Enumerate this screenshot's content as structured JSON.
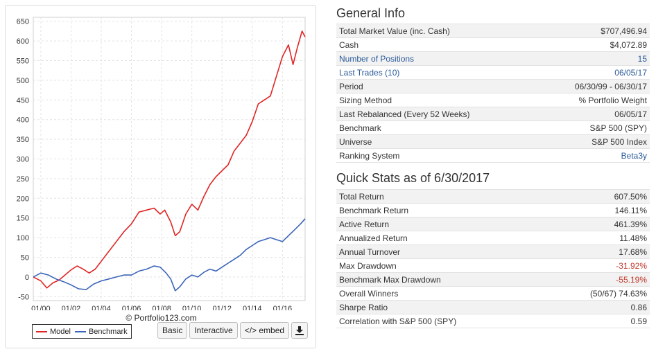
{
  "chart_data": {
    "type": "line",
    "ylim": [
      -60,
      660
    ],
    "yticks": [
      -50,
      0,
      50,
      100,
      150,
      200,
      250,
      300,
      350,
      400,
      450,
      500,
      550,
      600,
      650
    ],
    "xlim": [
      1999.5,
      2017.5
    ],
    "xticks": [
      {
        "label": "01/00",
        "x": 2000
      },
      {
        "label": "01/02",
        "x": 2002
      },
      {
        "label": "01/04",
        "x": 2004
      },
      {
        "label": "01/06",
        "x": 2006
      },
      {
        "label": "01/08",
        "x": 2008
      },
      {
        "label": "01/10",
        "x": 2010
      },
      {
        "label": "01/12",
        "x": 2012
      },
      {
        "label": "01/14",
        "x": 2014
      },
      {
        "label": "01/16",
        "x": 2016
      }
    ],
    "grid": true,
    "legend_position": "bottom-left",
    "series": [
      {
        "name": "Model",
        "color": "#e02424",
        "points": [
          [
            1999.5,
            0
          ],
          [
            2000.0,
            -10
          ],
          [
            2000.4,
            -28
          ],
          [
            2000.8,
            -15
          ],
          [
            2001.2,
            -8
          ],
          [
            2001.6,
            5
          ],
          [
            2002.0,
            18
          ],
          [
            2002.4,
            28
          ],
          [
            2002.8,
            20
          ],
          [
            2003.2,
            10
          ],
          [
            2003.6,
            20
          ],
          [
            2004.0,
            40
          ],
          [
            2004.5,
            65
          ],
          [
            2005.0,
            90
          ],
          [
            2005.5,
            115
          ],
          [
            2006.0,
            135
          ],
          [
            2006.5,
            165
          ],
          [
            2007.0,
            170
          ],
          [
            2007.5,
            175
          ],
          [
            2007.9,
            160
          ],
          [
            2008.2,
            170
          ],
          [
            2008.6,
            140
          ],
          [
            2008.9,
            105
          ],
          [
            2009.2,
            115
          ],
          [
            2009.6,
            160
          ],
          [
            2010.0,
            185
          ],
          [
            2010.4,
            170
          ],
          [
            2010.8,
            205
          ],
          [
            2011.2,
            235
          ],
          [
            2011.6,
            255
          ],
          [
            2012.0,
            270
          ],
          [
            2012.4,
            285
          ],
          [
            2012.8,
            320
          ],
          [
            2013.2,
            340
          ],
          [
            2013.6,
            360
          ],
          [
            2014.0,
            395
          ],
          [
            2014.4,
            440
          ],
          [
            2014.8,
            450
          ],
          [
            2015.2,
            460
          ],
          [
            2015.6,
            510
          ],
          [
            2016.0,
            560
          ],
          [
            2016.4,
            590
          ],
          [
            2016.7,
            540
          ],
          [
            2017.0,
            585
          ],
          [
            2017.3,
            625
          ],
          [
            2017.5,
            610
          ]
        ]
      },
      {
        "name": "Benchmark",
        "color": "#3a64b8",
        "points": [
          [
            1999.5,
            0
          ],
          [
            2000.0,
            10
          ],
          [
            2000.5,
            5
          ],
          [
            2001.0,
            -5
          ],
          [
            2001.5,
            -12
          ],
          [
            2002.0,
            -20
          ],
          [
            2002.5,
            -30
          ],
          [
            2003.0,
            -32
          ],
          [
            2003.5,
            -18
          ],
          [
            2004.0,
            -10
          ],
          [
            2004.5,
            -5
          ],
          [
            2005.0,
            0
          ],
          [
            2005.5,
            5
          ],
          [
            2006.0,
            5
          ],
          [
            2006.5,
            15
          ],
          [
            2007.0,
            20
          ],
          [
            2007.5,
            28
          ],
          [
            2007.9,
            25
          ],
          [
            2008.3,
            10
          ],
          [
            2008.6,
            -5
          ],
          [
            2008.9,
            -35
          ],
          [
            2009.2,
            -25
          ],
          [
            2009.6,
            -5
          ],
          [
            2010.0,
            5
          ],
          [
            2010.4,
            0
          ],
          [
            2010.8,
            12
          ],
          [
            2011.2,
            20
          ],
          [
            2011.6,
            15
          ],
          [
            2012.0,
            25
          ],
          [
            2012.4,
            35
          ],
          [
            2012.8,
            45
          ],
          [
            2013.2,
            55
          ],
          [
            2013.6,
            70
          ],
          [
            2014.0,
            80
          ],
          [
            2014.4,
            90
          ],
          [
            2014.8,
            95
          ],
          [
            2015.2,
            100
          ],
          [
            2015.6,
            95
          ],
          [
            2016.0,
            90
          ],
          [
            2016.4,
            105
          ],
          [
            2016.8,
            120
          ],
          [
            2017.2,
            135
          ],
          [
            2017.5,
            148
          ]
        ]
      }
    ]
  },
  "watermark": "© Portfolio123.com",
  "buttons": {
    "basic": "Basic",
    "interactive": "Interactive",
    "embed": "</> embed"
  },
  "download_icon": "download-icon",
  "general_info": {
    "title": "General Info",
    "rows": [
      {
        "label": "Total Market Value (inc. Cash)",
        "value": "$707,496.94"
      },
      {
        "label": "Cash",
        "value": "$4,072.89"
      },
      {
        "label": "Number of Positions",
        "value": "15"
      },
      {
        "label": "Last Trades (10)",
        "value": "06/05/17"
      },
      {
        "label": "Period",
        "value": "06/30/99 - 06/30/17"
      },
      {
        "label": "Sizing Method",
        "value": "% Portfolio Weight"
      },
      {
        "label": "Last Rebalanced (Every 52 Weeks)",
        "value": "06/05/17"
      },
      {
        "label": "Benchmark",
        "value": "S&P 500 (SPY)"
      },
      {
        "label": "Universe",
        "value": "S&P 500 Index"
      },
      {
        "label": "Ranking System",
        "value": "Beta3y"
      }
    ]
  },
  "quick_stats": {
    "title": "Quick Stats as of 6/30/2017",
    "rows": [
      {
        "label": "Total Return",
        "value": "607.50%"
      },
      {
        "label": "Benchmark Return",
        "value": "146.11%"
      },
      {
        "label": "Active Return",
        "value": "461.39%"
      },
      {
        "label": "Annualized Return",
        "value": "11.48%"
      },
      {
        "label": "Annual Turnover",
        "value": "17.68%"
      },
      {
        "label": "Max Drawdown",
        "value": "-31.92%"
      },
      {
        "label": "Benchmark Max Drawdown",
        "value": "-55.19%"
      },
      {
        "label": "Overall Winners",
        "value": "(50/67) 74.63%"
      },
      {
        "label": "Sharpe Ratio",
        "value": "0.86"
      },
      {
        "label": "Correlation with S&P 500 (SPY)",
        "value": "0.59"
      }
    ]
  },
  "colors": {
    "link": "#2a5a9a",
    "negative": "#c0392b",
    "model": "#e02424",
    "benchmark": "#3a64b8"
  }
}
